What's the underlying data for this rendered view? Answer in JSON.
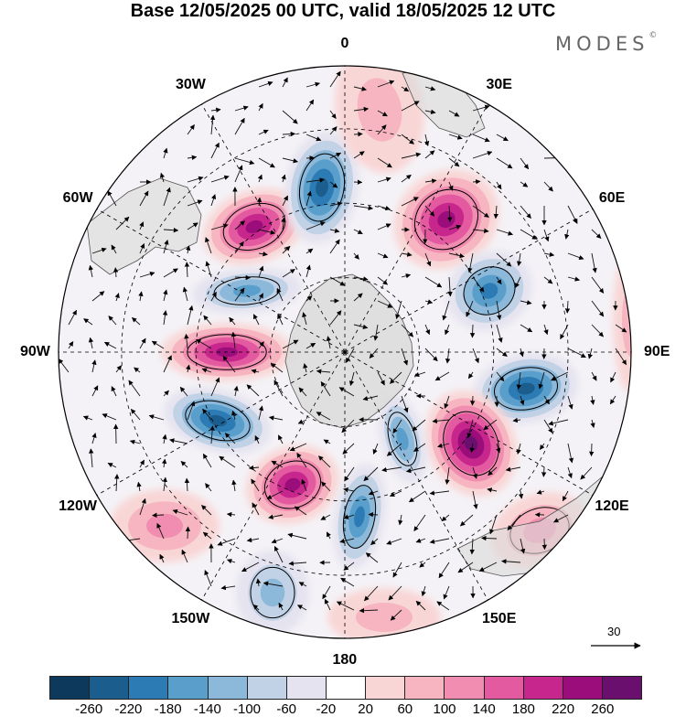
{
  "title": "Base 12/05/2025 00 UTC, valid 18/05/2025 12 UTC",
  "brand": {
    "name": "MODES",
    "mark": "©"
  },
  "longitude_labels": [
    "0",
    "30E",
    "60E",
    "90E",
    "120E",
    "150E",
    "180",
    "150W",
    "120W",
    "90W",
    "60W",
    "30W"
  ],
  "vector_scale": {
    "label": "30"
  },
  "colorbar": {
    "colors": [
      "#0d3a5c",
      "#1b5d8c",
      "#2c7bb4",
      "#5a9fcb",
      "#8cb8da",
      "#c2d2e6",
      "#e4e3ef",
      "#ffffff",
      "#f9d6d6",
      "#f6b5c0",
      "#f08db0",
      "#e35aa0",
      "#c7278c",
      "#9a0d7a",
      "#6b0f6e"
    ],
    "ticks": [
      "-260",
      "-220",
      "-180",
      "-140",
      "-100",
      "-60",
      "-20",
      "20",
      "60",
      "100",
      "140",
      "180",
      "220",
      "260"
    ]
  },
  "anomaly_centers": [
    {
      "id": "a1",
      "value": 200
    },
    {
      "id": "a2",
      "value": -200
    },
    {
      "id": "a3",
      "value": 220
    },
    {
      "id": "a4",
      "value": -180
    },
    {
      "id": "a5",
      "value": 220
    },
    {
      "id": "a6",
      "value": -140
    },
    {
      "id": "a7",
      "value": -200
    },
    {
      "id": "a8",
      "value": 240
    },
    {
      "id": "a9",
      "value": -120
    },
    {
      "id": "a10",
      "value": -200
    },
    {
      "id": "a11",
      "value": 220
    },
    {
      "id": "a12",
      "value": -180
    },
    {
      "id": "a13",
      "value": -100
    },
    {
      "id": "a14",
      "value": 60
    },
    {
      "id": "a15",
      "value": 80
    },
    {
      "id": "a16",
      "value": 60
    },
    {
      "id": "a17",
      "value": 60
    },
    {
      "id": "a18",
      "value": 100
    }
  ]
}
